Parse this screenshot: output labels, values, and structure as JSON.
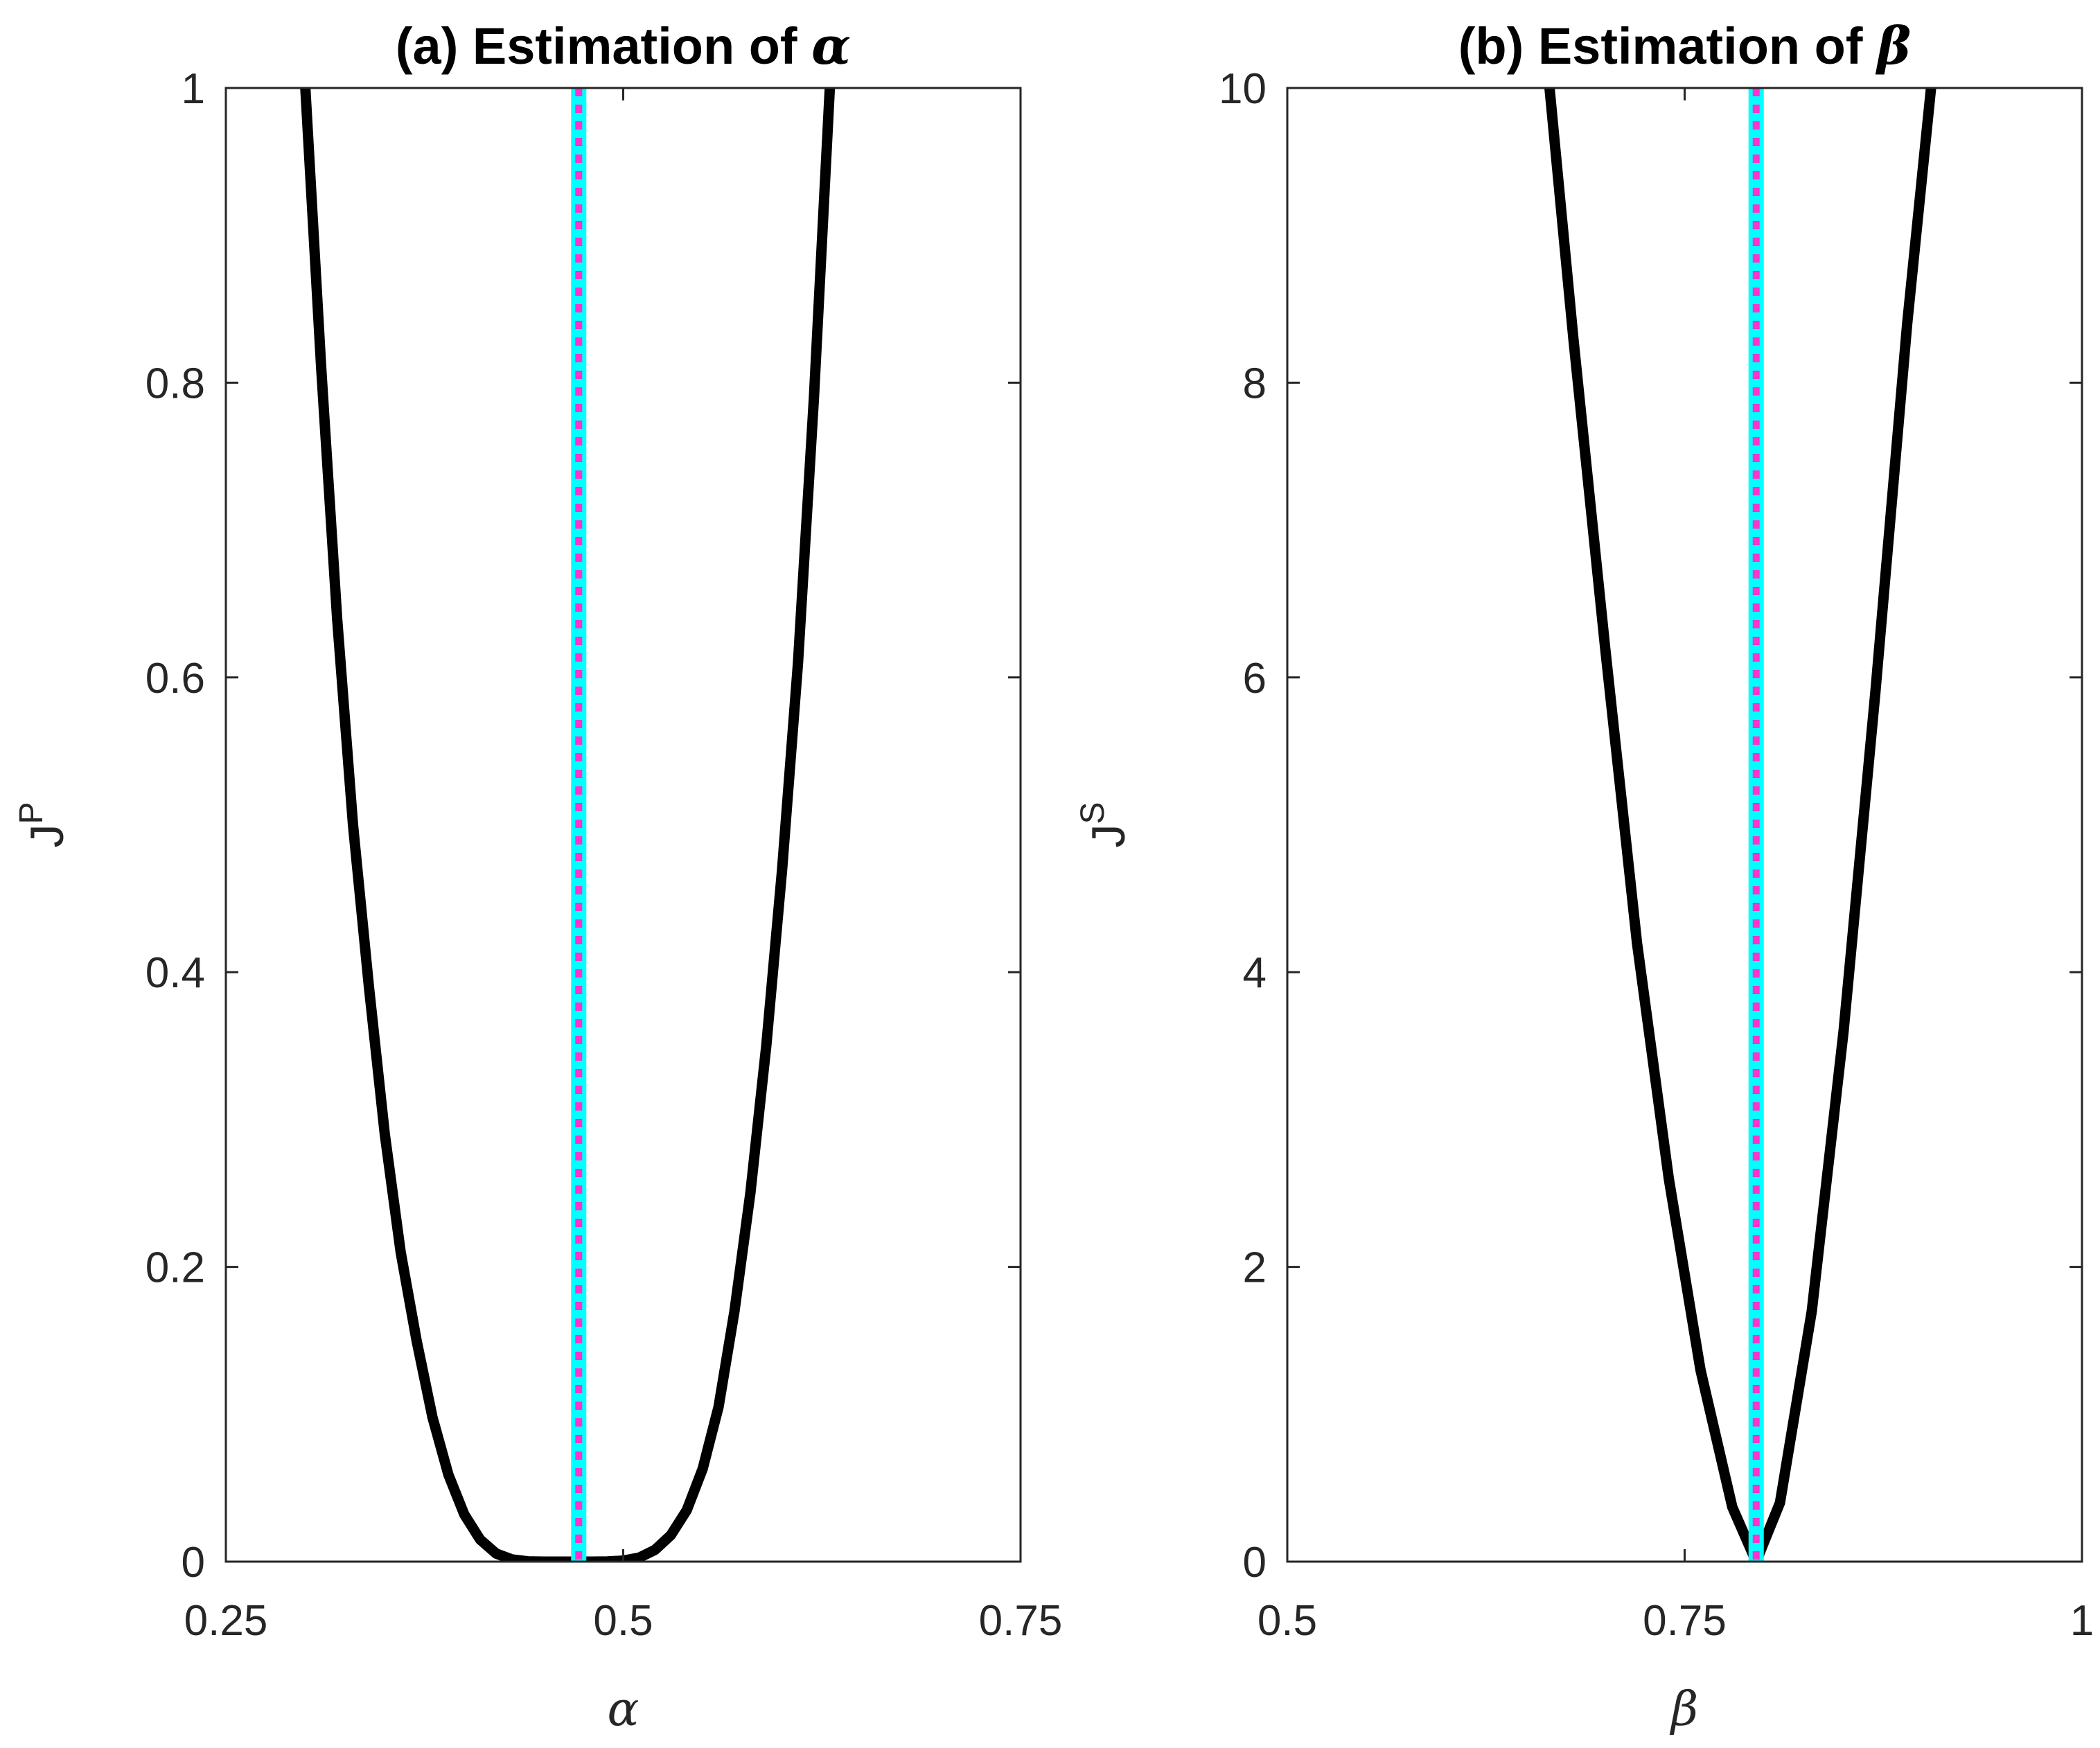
{
  "colors": {
    "curve": "#000000",
    "true_value": "#00ffff",
    "estimate": "#ff33cc",
    "axes": "#262626"
  },
  "chart_data": [
    {
      "type": "line",
      "title_prefix": "(a) Estimation of ",
      "title_symbol": "α",
      "xlabel": "α",
      "ylabel_base": "J",
      "ylabel_sup": "P",
      "xlim": [
        0.25,
        0.75
      ],
      "ylim": [
        0,
        1
      ],
      "xticks": [
        0.25,
        0.5,
        0.75
      ],
      "xtick_labels": [
        "0.25",
        "0.5",
        "0.75"
      ],
      "yticks": [
        0,
        0.2,
        0.4,
        0.6,
        0.8,
        1
      ],
      "ytick_labels": [
        "0",
        "0.2",
        "0.4",
        "0.6",
        "0.8",
        "1"
      ],
      "series": [
        {
          "name": "J^P(α)",
          "style": "solid black",
          "x": [
            0.3,
            0.31,
            0.32,
            0.33,
            0.34,
            0.35,
            0.36,
            0.37,
            0.38,
            0.39,
            0.4,
            0.41,
            0.42,
            0.43,
            0.44,
            0.45,
            0.46,
            0.47,
            0.48,
            0.49,
            0.5,
            0.51,
            0.52,
            0.53,
            0.54,
            0.55,
            0.56,
            0.57,
            0.58,
            0.59,
            0.6,
            0.61,
            0.62,
            0.63
          ],
          "y": [
            1.0,
            0.81,
            0.64,
            0.5,
            0.39,
            0.29,
            0.21,
            0.15,
            0.098,
            0.059,
            0.032,
            0.015,
            0.0055,
            0.0015,
            0.0002,
            0.0,
            0.0,
            0.0,
            0.0,
            0.0001,
            0.0007,
            0.0027,
            0.008,
            0.018,
            0.035,
            0.063,
            0.105,
            0.17,
            0.25,
            0.35,
            0.47,
            0.61,
            0.79,
            1.0
          ]
        }
      ],
      "vlines": [
        {
          "name": "true value",
          "x": 0.472,
          "style": "solid cyan"
        },
        {
          "name": "estimate",
          "x": 0.472,
          "style": "dotted magenta"
        }
      ]
    },
    {
      "type": "line",
      "title_prefix": "(b) Estimation of ",
      "title_symbol": "β",
      "xlabel": "β",
      "ylabel_base": "J",
      "ylabel_sup": "S",
      "xlim": [
        0.5,
        1
      ],
      "ylim": [
        0,
        10
      ],
      "xticks": [
        0.5,
        0.75,
        1
      ],
      "xtick_labels": [
        "0.5",
        "0.75",
        "1"
      ],
      "yticks": [
        0,
        2,
        4,
        6,
        8,
        10
      ],
      "ytick_labels": [
        "0",
        "2",
        "4",
        "6",
        "8",
        "10"
      ],
      "series": [
        {
          "name": "J^S(β)",
          "style": "solid black",
          "x": [
            0.665,
            0.68,
            0.7,
            0.72,
            0.74,
            0.76,
            0.78,
            0.795,
            0.81,
            0.83,
            0.85,
            0.87,
            0.89,
            0.905
          ],
          "y": [
            10.0,
            8.3,
            6.2,
            4.2,
            2.6,
            1.3,
            0.37,
            0.0,
            0.4,
            1.7,
            3.6,
            5.9,
            8.4,
            10.0
          ]
        }
      ],
      "vlines": [
        {
          "name": "true value",
          "x": 0.795,
          "style": "solid cyan"
        },
        {
          "name": "estimate",
          "x": 0.795,
          "style": "dotted magenta"
        }
      ]
    }
  ]
}
